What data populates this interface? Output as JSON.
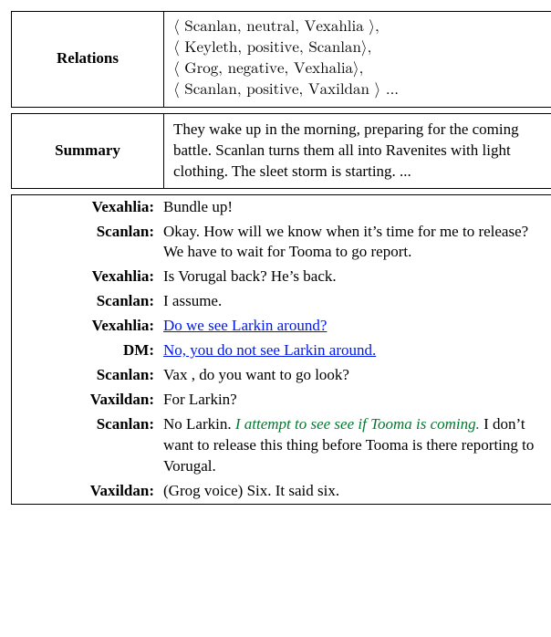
{
  "relations": {
    "label": "Relations",
    "lines": [
      "⟨ Scanlan, neutral, Vexahlia ⟩,",
      "⟨ Keyleth, positive, Scanlan⟩,",
      "⟨ Grog, negative, Vexhalia⟩,",
      "⟨ Scanlan, positive, Vaxildan ⟩ ..."
    ]
  },
  "summary": {
    "label": "Summary",
    "text": "They wake up in the morning, preparing for the coming battle. Scanlan turns them all into Ravenites with light clothing. The sleet storm is starting. ..."
  },
  "dialogue": [
    {
      "speaker": "Vexahlia:",
      "text": "Bundle up!",
      "style": "normal"
    },
    {
      "speaker": "Scanlan:",
      "text": "Okay. How will we know when it’s time for me to release? We have to wait for Tooma to go report.",
      "style": "normal"
    },
    {
      "speaker": "Vexahlia:",
      "text": "Is Vorugal back? He’s back.",
      "style": "normal"
    },
    {
      "speaker": "Scanlan:",
      "text": "I assume.",
      "style": "normal"
    },
    {
      "speaker": "Vexahlia:",
      "text": "Do we see Larkin around?",
      "style": "blue"
    },
    {
      "speaker": "DM:",
      "text": "No, you do not see Larkin around.",
      "style": "blue"
    },
    {
      "speaker": "Scanlan:",
      "text": "Vax , do you want to go look?",
      "style": "normal"
    },
    {
      "speaker": "Vaxildan:",
      "text": "For Larkin?",
      "style": "normal"
    },
    {
      "speaker": "Scanlan:",
      "parts": [
        {
          "text": "No Larkin. ",
          "style": "normal"
        },
        {
          "text": "I attempt to see see if Tooma is coming.",
          "style": "green"
        },
        {
          "text": "  I don’t want to release this thing before Tooma is there reporting to Vorugal.",
          "style": "normal"
        }
      ]
    },
    {
      "speaker": "Vaxildan:",
      "text": "(Grog voice) Six. It said six.",
      "style": "normal"
    }
  ],
  "colors": {
    "link_blue": "#0018ee",
    "italic_green": "#007a2f",
    "text_black": "#000000",
    "border_black": "#000000",
    "background": "#ffffff"
  },
  "typography": {
    "font_family": "Times New Roman",
    "base_fontsize_pt": 12
  }
}
